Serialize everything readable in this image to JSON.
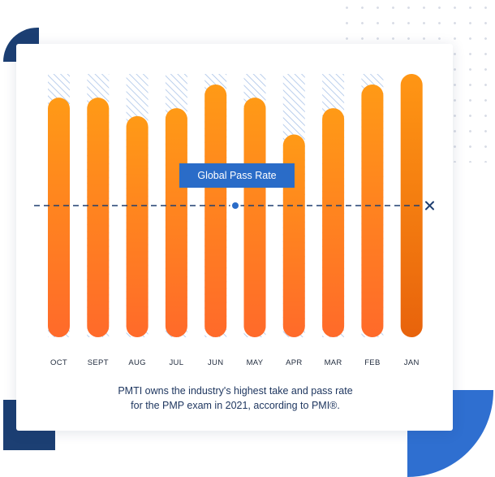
{
  "colors": {
    "bar_top": "#ff9a16",
    "bar_bottom": "#ff6a2a",
    "bar_highlight_top": "#ff9614",
    "bar_highlight_bottom": "#e8630c",
    "hatch": "#a9c3e8",
    "reference_line": "#1f3f70",
    "marker": "#2a6cc8",
    "navy_accent": "#1c3f73",
    "blue_accent": "#2f6fd0"
  },
  "icons": {
    "reference_line_end": "close-icon"
  },
  "chart_data": {
    "type": "bar",
    "categories": [
      "OCT",
      "SEPT",
      "AUG",
      "JUL",
      "JUN",
      "MAY",
      "APR",
      "MAR",
      "FEB",
      "JAN"
    ],
    "series": [
      {
        "values": [
          91,
          91,
          84,
          87,
          96,
          91,
          77,
          87,
          96,
          100
        ]
      },
      {
        "values": [
          100,
          100,
          100,
          100,
          100,
          100,
          100,
          100,
          100,
          100
        ]
      }
    ],
    "reference_line": {
      "label": "Global Pass Rate",
      "value": 50,
      "marker_index": 5
    },
    "ylim": [
      0,
      100
    ],
    "grid": false,
    "legend": "none"
  },
  "badge_text": "Global Pass Rate",
  "caption": {
    "line1": "PMTI owns the industry's highest take and pass rate",
    "line2": "for the PMP exam in 2021, according to PMI®."
  }
}
